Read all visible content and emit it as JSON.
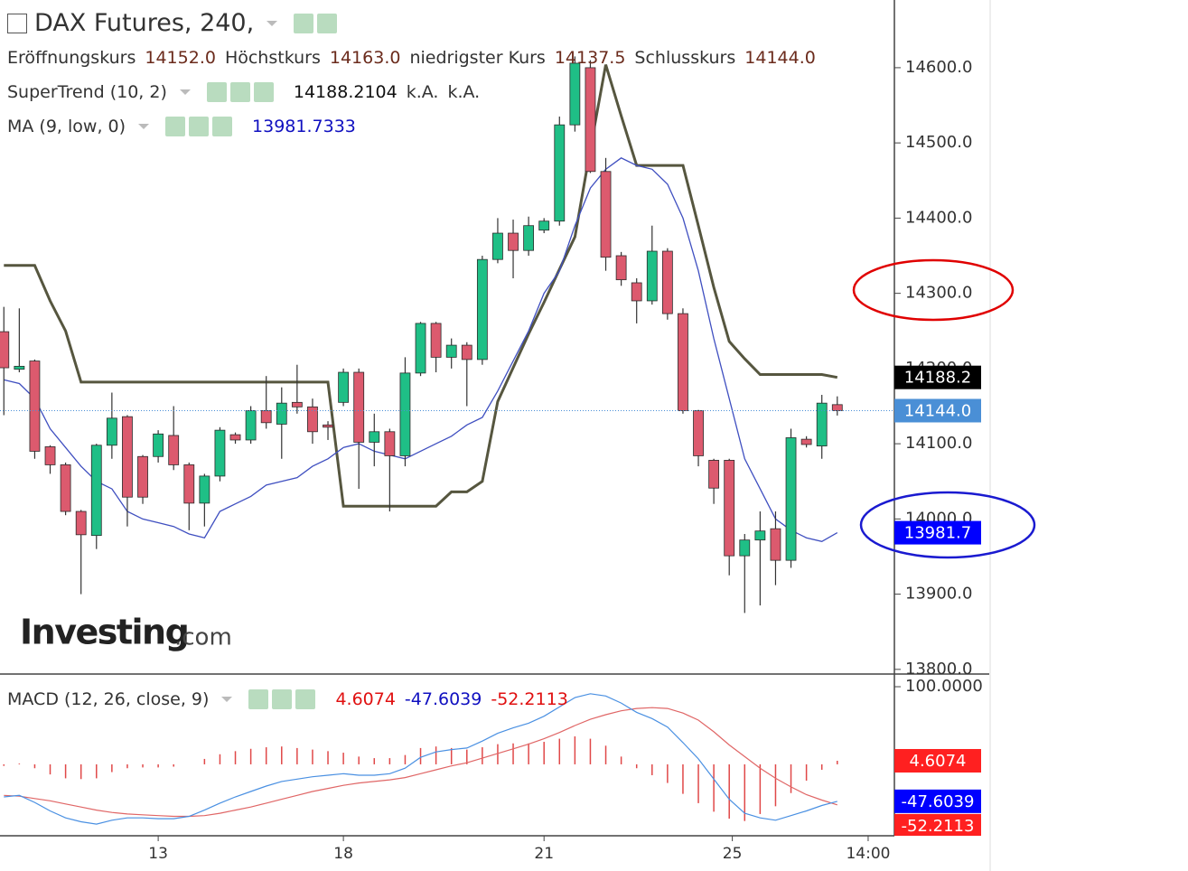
{
  "chart_data": [
    {
      "type": "candlestick",
      "title": "DAX Futures, 240,",
      "ohlc_names": [
        "Eröffnungskurs",
        "Höchstkurs",
        "niedrigster Kurs",
        "Schlusskurs"
      ],
      "ohlc_labels": [
        "14152.0",
        "14163.0",
        "14137.5",
        "14144.0"
      ],
      "up_color": "#1fbf86",
      "down_color": "#dc5a6e",
      "open": [
        14249,
        14199,
        14210,
        14096,
        14072,
        14010,
        13978,
        14098,
        14136,
        14083,
        14083,
        14111,
        14072,
        14021,
        14057,
        14112,
        14105,
        14144,
        14126,
        14155,
        14149,
        14125,
        14155,
        14195,
        14102,
        14116,
        14084,
        14194,
        14260,
        14215,
        14231,
        14212,
        14345,
        14380,
        14357,
        14384,
        14396,
        14524,
        14600,
        14462,
        14350,
        14314,
        14290,
        14356,
        14273,
        14144,
        14078,
        14078,
        13951,
        13972,
        13987,
        13945,
        14106,
        14097,
        14152
      ],
      "high": [
        14282,
        14280,
        14212,
        14098,
        14075,
        14012,
        14100,
        14168,
        14138,
        14085,
        14118,
        14150,
        14075,
        14060,
        14122,
        14115,
        14150,
        14190,
        14175,
        14205,
        14160,
        14130,
        14200,
        14200,
        14140,
        14120,
        14215,
        14262,
        14262,
        14240,
        14235,
        14350,
        14400,
        14398,
        14402,
        14400,
        14535,
        14615,
        14610,
        14480,
        14355,
        14320,
        14390,
        14360,
        14280,
        14145,
        14080,
        14080,
        13980,
        14010,
        14010,
        14120,
        14110,
        14165,
        14163
      ],
      "low": [
        14138,
        14195,
        14080,
        14060,
        14005,
        13900,
        13960,
        14080,
        13990,
        14020,
        14075,
        14065,
        13985,
        13990,
        14050,
        14100,
        14100,
        14120,
        14080,
        14140,
        14100,
        14105,
        14150,
        14040,
        14070,
        14010,
        14070,
        14190,
        14195,
        14200,
        14150,
        14205,
        14340,
        14320,
        14350,
        14380,
        14390,
        14515,
        14460,
        14330,
        14310,
        14260,
        14285,
        14265,
        14140,
        14070,
        14020,
        13925,
        13875,
        13885,
        13912,
        13935,
        14095,
        14080,
        14137.5
      ],
      "close": [
        14201,
        14203,
        14090,
        14072,
        14010,
        13979,
        14098,
        14134,
        14029,
        14029,
        14113,
        14072,
        14021,
        14057,
        14118,
        14105,
        14144,
        14128,
        14154,
        14149,
        14116,
        14122,
        14195,
        14102,
        14116,
        14084,
        14194,
        14260,
        14215,
        14231,
        14212,
        14345,
        14380,
        14357,
        14390,
        14396,
        14524,
        14606,
        14462,
        14348,
        14318,
        14290,
        14356,
        14273,
        14144,
        14084,
        14041,
        13951,
        13972,
        13984,
        13945,
        14108,
        14099,
        14154,
        14144
      ],
      "overlays": [
        {
          "name": "SuperTrend (10, 2)",
          "color": "#56563f",
          "extra_labels": [
            "k.A.",
            "k.A."
          ],
          "values": [
            14337,
            14337,
            14337,
            14290,
            14250,
            14182,
            14182,
            14182,
            14182,
            14182,
            14182,
            14182,
            14182,
            14182,
            14182,
            14182,
            14182,
            14182,
            14182,
            14182,
            14182,
            14182,
            14017,
            14017,
            14017,
            14017,
            14017,
            14017,
            14017,
            14036,
            14036,
            14050,
            14156,
            14201,
            14246,
            14288,
            14332,
            14375,
            14492,
            14604,
            14536,
            14470,
            14470,
            14470,
            14470,
            14390,
            14308,
            14236,
            14213,
            14192,
            14192,
            14192,
            14192,
            14192,
            14188.2104
          ]
        },
        {
          "name": "MA (9, low, 0)",
          "color": "#3f4fc0",
          "values": [
            14185,
            14180,
            14160,
            14120,
            14095,
            14070,
            14050,
            14040,
            14010,
            14000,
            13995,
            13990,
            13980,
            13975,
            14010,
            14020,
            14030,
            14045,
            14050,
            14055,
            14070,
            14080,
            14095,
            14100,
            14090,
            14085,
            14080,
            14090,
            14100,
            14110,
            14125,
            14135,
            14170,
            14210,
            14250,
            14300,
            14330,
            14390,
            14440,
            14465,
            14480,
            14470,
            14465,
            14445,
            14400,
            14330,
            14240,
            14160,
            14080,
            14040,
            14000,
            13985,
            13975,
            13970,
            13981.7333
          ]
        }
      ],
      "badges": [
        {
          "value": 14188.2,
          "label": "14188.2",
          "color": "#000000"
        },
        {
          "value": 14144.0,
          "label": "14144.0",
          "color": "#4a8fd6"
        },
        {
          "value": 13981.7,
          "label": "13981.7",
          "color": "#0000ff"
        }
      ],
      "xlim": [
        -0.25,
        57.7
      ],
      "xticks": [
        {
          "value": 10,
          "label": "13"
        },
        {
          "value": 22,
          "label": "18"
        },
        {
          "value": 35,
          "label": "21"
        },
        {
          "value": 47.2,
          "label": "25"
        },
        {
          "value": 56,
          "label": "14:00"
        }
      ],
      "ylim": [
        13795,
        14690
      ],
      "yticks": [
        {
          "value": 13800,
          "label": "13800.0"
        },
        {
          "value": 13900,
          "label": "13900.0"
        },
        {
          "value": 14000,
          "label": "14000.0"
        },
        {
          "value": 14100,
          "label": "14100.0"
        },
        {
          "value": 14200,
          "label": "14200.0"
        },
        {
          "value": 14300,
          "label": "14300.0"
        },
        {
          "value": 14400,
          "label": "14400.0"
        },
        {
          "value": 14500,
          "label": "14500.0"
        },
        {
          "value": 14600,
          "label": "14600.0"
        }
      ],
      "watermark": [
        "Investing",
        ".com"
      ]
    },
    {
      "type": "macd",
      "title": "MACD (12, 26, close, 9)",
      "histogram": {
        "color": "#e04848",
        "badge_color": "#ff2020",
        "values": [
          -2,
          1,
          -5,
          -13,
          -18,
          -19,
          -18,
          -10,
          -5,
          -4,
          -4,
          -3,
          0,
          7,
          13,
          17,
          20,
          22,
          23,
          21,
          19,
          17,
          15,
          10,
          8,
          8,
          12,
          21,
          23,
          21,
          19,
          22,
          26,
          27,
          27,
          29,
          33,
          36,
          33,
          24,
          10,
          -5,
          -14,
          -24,
          -38,
          -50,
          -61,
          -70,
          -73,
          -64,
          -54,
          -37,
          -21,
          -7,
          4.6074
        ]
      },
      "macd": {
        "color": "#4a90e2",
        "badge_color": "#0000ff",
        "values": [
          -42,
          -40,
          -49,
          -60,
          -69,
          -74,
          -77,
          -72,
          -69,
          -69,
          -70,
          -70,
          -67,
          -59,
          -50,
          -42,
          -35,
          -28,
          -22,
          -19,
          -16,
          -14,
          -12,
          -14,
          -14,
          -12,
          -5,
          9,
          16,
          19,
          21,
          30,
          40,
          47,
          53,
          62,
          74,
          86,
          91,
          88,
          79,
          67,
          59,
          48,
          28,
          7,
          -19,
          -45,
          -63,
          -69,
          -72,
          -66,
          -60,
          -53,
          -47.6039
        ]
      },
      "signal": {
        "color": "#e06666",
        "badge_color": "#ff2020",
        "values": [
          -40,
          -41,
          -44,
          -47,
          -51,
          -55,
          -59,
          -62,
          -64,
          -65,
          -66,
          -67,
          -67,
          -66,
          -63,
          -59,
          -55,
          -50,
          -45,
          -40,
          -35,
          -31,
          -27,
          -24,
          -22,
          -20,
          -17,
          -12,
          -7,
          -2,
          2,
          8,
          14,
          20,
          26,
          33,
          41,
          50,
          58,
          64,
          69,
          72,
          73,
          72,
          66,
          57,
          42,
          25,
          10,
          -5,
          -18,
          -29,
          -39,
          -46,
          -52.2113
        ]
      },
      "ylim": [
        -92,
        114
      ],
      "yticks": [
        {
          "value": 100,
          "label": "100.0000"
        }
      ]
    }
  ]
}
